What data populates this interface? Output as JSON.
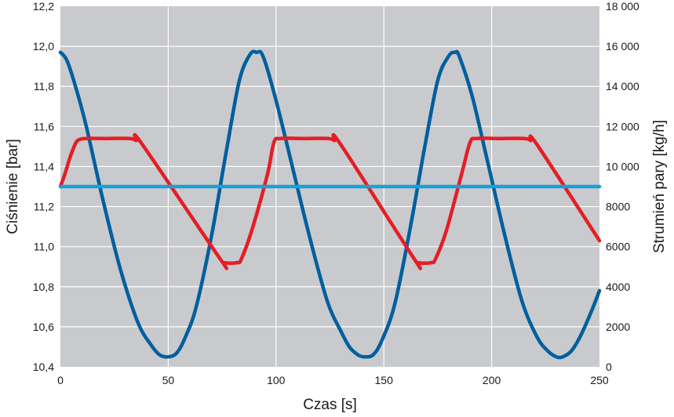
{
  "chart_data": {
    "type": "line",
    "title": "",
    "xlabel": "Czas [s]",
    "ylabel": "Ciśnienie [bar]",
    "y2label": "Strumień pary [kg/h]",
    "xlim": [
      0,
      250
    ],
    "ylim": [
      10.4,
      12.2
    ],
    "y2lim": [
      0,
      18000
    ],
    "x_ticks": [
      0,
      50,
      100,
      150,
      200,
      250
    ],
    "x_tick_labels": [
      "0",
      "50",
      "100",
      "150",
      "200",
      "250"
    ],
    "y_ticks": [
      10.4,
      10.6,
      10.8,
      11.0,
      11.2,
      11.4,
      11.6,
      11.8,
      12.0,
      12.2
    ],
    "y_tick_labels": [
      "10,4",
      "10,6",
      "10,8",
      "11,0",
      "11,2",
      "11,4",
      "11,6",
      "11,8",
      "12,0",
      "12,2"
    ],
    "y2_ticks": [
      0,
      2000,
      4000,
      6000,
      8000,
      10000,
      12000,
      14000,
      16000,
      18000
    ],
    "y2_tick_labels": [
      "0",
      "2000",
      "4000",
      "6000",
      "8000",
      "10 000",
      "12 000",
      "14 000",
      "16 000",
      "18 000"
    ],
    "grid": true,
    "background": "#c8cacd",
    "series": [
      {
        "color": "#005f9e",
        "axis": "right",
        "x": [
          0,
          3,
          7,
          12,
          20,
          28,
          36,
          42,
          46,
          50,
          54,
          58,
          63,
          70,
          77,
          83,
          88,
          91,
          94,
          100,
          108,
          116,
          124,
          130,
          134,
          138,
          141,
          145,
          149,
          155,
          162,
          169,
          175,
          180,
          183,
          185,
          191,
          198,
          206,
          214,
          221,
          226,
          230,
          233,
          237,
          241,
          246,
          250
        ],
        "values": [
          15700,
          15300,
          14000,
          12000,
          8200,
          4800,
          2200,
          1100,
          600,
          500,
          700,
          1500,
          3000,
          6500,
          10800,
          14300,
          15600,
          15700,
          15500,
          13300,
          9800,
          6300,
          3200,
          1800,
          1000,
          600,
          500,
          600,
          1300,
          3100,
          6800,
          11000,
          14300,
          15500,
          15700,
          15500,
          13500,
          10300,
          6600,
          3300,
          1500,
          800,
          500,
          500,
          800,
          1500,
          2700,
          3800
        ]
      },
      {
        "color": "#e41e26",
        "axis": "right",
        "x": [
          0,
          2,
          4,
          6,
          8,
          12,
          20,
          32,
          35,
          38,
          74,
          76,
          82,
          84,
          89,
          96,
          99,
          102,
          112,
          124,
          127,
          130,
          164,
          166,
          172,
          174,
          179,
          186,
          190,
          193,
          203,
          215,
          218,
          221,
          250
        ],
        "values": [
          9000,
          9600,
          10300,
          10900,
          11300,
          11400,
          11400,
          11400,
          11300,
          11100,
          5400,
          5200,
          5200,
          5400,
          6900,
          9600,
          11200,
          11400,
          11400,
          11400,
          11300,
          11100,
          5400,
          5200,
          5200,
          5400,
          6800,
          9600,
          11200,
          11400,
          11400,
          11400,
          11300,
          11100,
          6300
        ]
      },
      {
        "color": "#1a9fd8",
        "axis": "left",
        "x": [
          0,
          250
        ],
        "values": [
          11.3,
          11.3
        ]
      }
    ]
  }
}
